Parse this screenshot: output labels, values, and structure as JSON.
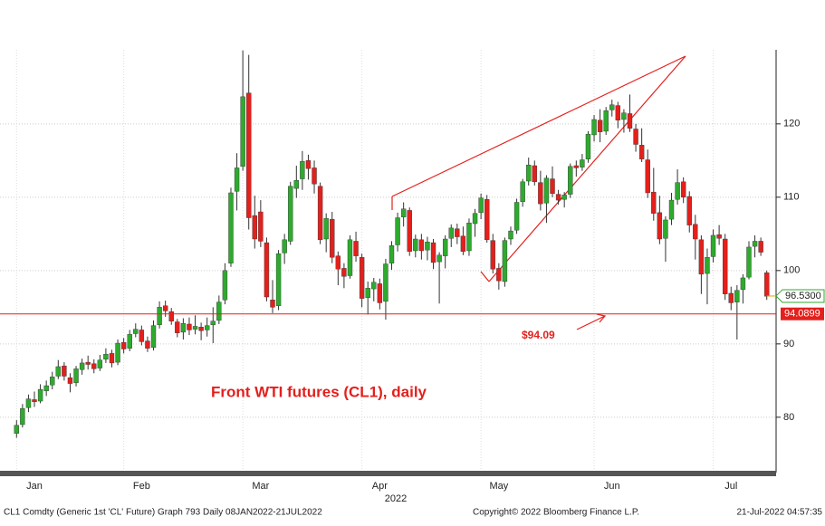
{
  "chart_data": {
    "type": "candlestick",
    "title": "Front WTI futures (CL1), daily",
    "annotation": "$94.09",
    "year_label": "2022",
    "footer_left": "CL1 Comdty (Generic 1st 'CL' Future) Graph 793  Daily 08JAN2022-21JUL2022",
    "footer_center": "Copyright© 2022 Bloomberg Finance L.P.",
    "footer_right": "21-Jul-2022 04:57:35",
    "up_color": "#2eaa2e",
    "down_color": "#e3201c",
    "line_color": "#e3201c",
    "last_color": "#2eaa2e",
    "ylim": [
      72.7,
      130.1
    ],
    "yticks": [
      80,
      90,
      100,
      110,
      120
    ],
    "grid": true,
    "hline": {
      "value": 94.0899,
      "label": "94.0899"
    },
    "last_price": {
      "value": 96.53,
      "label": "96.5300"
    },
    "categories": [
      null,
      null,
      null,
      "Jan",
      null,
      null,
      null,
      null,
      null,
      null,
      null,
      null,
      null,
      null,
      null,
      null,
      null,
      null,
      null,
      null,
      null,
      "Feb",
      null,
      null,
      null,
      null,
      null,
      null,
      null,
      null,
      null,
      null,
      null,
      null,
      null,
      null,
      null,
      null,
      null,
      null,
      null,
      "Mar",
      null,
      null,
      null,
      null,
      null,
      null,
      null,
      null,
      null,
      null,
      null,
      null,
      null,
      null,
      null,
      null,
      null,
      null,
      null,
      "Apr",
      null,
      null,
      null,
      null,
      null,
      null,
      null,
      null,
      null,
      null,
      null,
      null,
      null,
      null,
      null,
      null,
      null,
      null,
      null,
      "May",
      null,
      null,
      null,
      null,
      null,
      null,
      null,
      null,
      null,
      null,
      null,
      null,
      null,
      null,
      null,
      null,
      null,
      null,
      "Jun",
      null,
      null,
      null,
      null,
      null,
      null,
      null,
      null,
      null,
      null,
      null,
      null,
      null,
      null,
      null,
      null,
      null,
      null,
      null,
      "Jul",
      null,
      null,
      null,
      null,
      null,
      null
    ],
    "ohlc": [
      [
        77.8,
        79.6,
        77.2,
        78.9
      ],
      [
        79.0,
        81.8,
        78.6,
        81.2
      ],
      [
        81.3,
        83.1,
        80.7,
        82.5
      ],
      [
        82.4,
        83.5,
        81.4,
        82.1
      ],
      [
        82.2,
        84.5,
        81.9,
        83.8
      ],
      [
        83.6,
        85.0,
        82.9,
        84.3
      ],
      [
        84.4,
        86.2,
        83.8,
        85.5
      ],
      [
        85.6,
        87.8,
        85.2,
        86.9
      ],
      [
        87.0,
        87.5,
        85.0,
        85.6
      ],
      [
        85.4,
        86.0,
        83.4,
        84.6
      ],
      [
        84.7,
        87.0,
        84.2,
        86.6
      ],
      [
        86.5,
        88.0,
        85.8,
        87.4
      ],
      [
        87.5,
        88.4,
        86.5,
        87.2
      ],
      [
        87.3,
        87.9,
        86.0,
        86.6
      ],
      [
        86.7,
        88.5,
        86.3,
        87.8
      ],
      [
        87.9,
        89.4,
        87.4,
        88.6
      ],
      [
        88.7,
        89.2,
        86.8,
        87.4
      ],
      [
        87.5,
        90.6,
        87.1,
        90.1
      ],
      [
        90.2,
        90.8,
        88.7,
        89.3
      ],
      [
        89.4,
        91.9,
        89.0,
        91.3
      ],
      [
        91.4,
        92.8,
        90.9,
        92.0
      ],
      [
        91.9,
        92.5,
        89.8,
        90.3
      ],
      [
        90.4,
        91.0,
        88.9,
        89.4
      ],
      [
        89.5,
        93.2,
        89.1,
        92.5
      ],
      [
        92.6,
        95.8,
        92.1,
        95.0
      ],
      [
        95.2,
        95.9,
        93.7,
        94.5
      ],
      [
        94.4,
        94.9,
        92.6,
        93.1
      ],
      [
        93.0,
        93.4,
        90.9,
        91.5
      ],
      [
        91.6,
        93.5,
        90.6,
        92.8
      ],
      [
        92.7,
        93.6,
        91.2,
        91.9
      ],
      [
        92.0,
        93.9,
        91.3,
        92.4
      ],
      [
        92.3,
        92.9,
        90.5,
        91.8
      ],
      [
        91.9,
        93.6,
        91.0,
        92.5
      ],
      [
        92.6,
        95.0,
        90.1,
        93.1
      ],
      [
        93.2,
        96.6,
        92.7,
        95.7
      ],
      [
        96.0,
        101.0,
        95.4,
        100.0
      ],
      [
        101.0,
        111.3,
        100.5,
        110.6
      ],
      [
        110.8,
        116.0,
        108.2,
        114.0
      ],
      [
        114.2,
        130.0,
        113.6,
        123.7
      ],
      [
        124.2,
        129.4,
        105.6,
        107.2
      ],
      [
        107.5,
        110.2,
        103.0,
        104.3
      ],
      [
        108.0,
        109.6,
        103.2,
        104.0
      ],
      [
        103.8,
        104.5,
        95.8,
        96.4
      ],
      [
        96.0,
        98.7,
        94.2,
        95.0
      ],
      [
        95.2,
        102.8,
        94.6,
        102.3
      ],
      [
        102.4,
        105.0,
        100.9,
        104.2
      ],
      [
        104.0,
        112.1,
        103.5,
        111.5
      ],
      [
        111.2,
        114.3,
        109.9,
        112.3
      ],
      [
        112.5,
        116.3,
        111.0,
        114.9
      ],
      [
        115.0,
        115.8,
        112.4,
        113.9
      ],
      [
        114.0,
        115.0,
        110.5,
        111.8
      ],
      [
        111.5,
        112.0,
        103.6,
        104.2
      ],
      [
        104.3,
        107.8,
        102.5,
        107.1
      ],
      [
        107.0,
        108.0,
        101.0,
        101.8
      ],
      [
        102.0,
        102.6,
        98.0,
        100.2
      ],
      [
        100.3,
        101.0,
        97.6,
        99.2
      ],
      [
        99.3,
        104.8,
        98.9,
        104.2
      ],
      [
        104.0,
        105.3,
        101.2,
        102.0
      ],
      [
        101.8,
        102.3,
        95.0,
        96.2
      ],
      [
        96.3,
        98.5,
        94.0,
        97.6
      ],
      [
        97.5,
        99.0,
        95.8,
        98.4
      ],
      [
        98.2,
        98.9,
        94.7,
        95.6
      ],
      [
        95.8,
        101.6,
        93.3,
        100.9
      ],
      [
        101.0,
        104.0,
        100.1,
        103.4
      ],
      [
        103.5,
        107.9,
        102.6,
        107.2
      ],
      [
        107.3,
        109.3,
        106.0,
        108.4
      ],
      [
        108.2,
        108.6,
        102.0,
        102.6
      ],
      [
        102.7,
        104.9,
        101.8,
        104.3
      ],
      [
        104.2,
        105.0,
        101.5,
        102.7
      ],
      [
        102.8,
        104.6,
        101.4,
        103.9
      ],
      [
        103.8,
        104.3,
        100.2,
        101.1
      ],
      [
        101.2,
        102.5,
        95.5,
        102.1
      ],
      [
        102.0,
        104.8,
        100.3,
        104.3
      ],
      [
        104.4,
        106.3,
        103.2,
        105.8
      ],
      [
        105.7,
        106.4,
        103.6,
        104.6
      ],
      [
        104.7,
        106.0,
        102.1,
        102.6
      ],
      [
        102.7,
        107.1,
        102.0,
        106.5
      ],
      [
        106.4,
        108.4,
        104.6,
        107.8
      ],
      [
        107.9,
        110.5,
        107.0,
        109.9
      ],
      [
        109.7,
        110.3,
        103.8,
        104.2
      ],
      [
        104.1,
        105.0,
        99.6,
        100.2
      ],
      [
        100.3,
        101.0,
        97.4,
        98.6
      ],
      [
        98.5,
        104.5,
        97.8,
        104.1
      ],
      [
        104.3,
        106.0,
        103.5,
        105.4
      ],
      [
        105.5,
        109.8,
        105.0,
        109.3
      ],
      [
        109.4,
        112.5,
        108.7,
        112.1
      ],
      [
        112.2,
        115.4,
        111.6,
        114.4
      ],
      [
        114.3,
        115.0,
        111.6,
        112.1
      ],
      [
        112.0,
        113.6,
        108.2,
        109.1
      ],
      [
        109.2,
        113.0,
        106.5,
        112.6
      ],
      [
        112.5,
        114.2,
        110.0,
        110.5
      ],
      [
        110.4,
        111.0,
        109.0,
        109.6
      ],
      [
        109.7,
        110.7,
        108.6,
        110.3
      ],
      [
        110.4,
        114.6,
        109.9,
        114.2
      ],
      [
        114.3,
        115.0,
        112.8,
        114.0
      ],
      [
        114.1,
        115.9,
        113.6,
        115.1
      ],
      [
        115.2,
        119.0,
        114.7,
        118.6
      ],
      [
        118.5,
        121.2,
        117.6,
        120.6
      ],
      [
        120.5,
        122.0,
        117.5,
        118.9
      ],
      [
        119.0,
        122.3,
        118.5,
        121.8
      ],
      [
        121.9,
        123.3,
        121.0,
        122.6
      ],
      [
        122.5,
        123.0,
        119.4,
        120.5
      ],
      [
        120.6,
        122.0,
        118.8,
        121.5
      ],
      [
        121.4,
        124.0,
        118.9,
        119.4
      ],
      [
        119.3,
        120.0,
        116.2,
        117.2
      ],
      [
        117.1,
        119.4,
        114.8,
        115.2
      ],
      [
        115.1,
        116.5,
        109.9,
        110.6
      ],
      [
        110.7,
        114.0,
        106.8,
        107.8
      ],
      [
        107.9,
        110.2,
        103.6,
        104.3
      ],
      [
        104.4,
        107.4,
        101.2,
        106.9
      ],
      [
        107.0,
        110.6,
        106.2,
        109.6
      ],
      [
        109.7,
        113.8,
        109.0,
        112.0
      ],
      [
        112.1,
        112.7,
        109.2,
        110.0
      ],
      [
        110.1,
        110.8,
        105.2,
        106.2
      ],
      [
        106.3,
        107.6,
        101.5,
        104.3
      ],
      [
        104.2,
        104.8,
        96.8,
        99.5
      ],
      [
        99.6,
        103.0,
        95.4,
        101.8
      ],
      [
        101.9,
        105.6,
        101.1,
        104.8
      ],
      [
        104.9,
        106.2,
        103.5,
        104.4
      ],
      [
        104.3,
        105.0,
        96.0,
        96.8
      ],
      [
        96.9,
        97.8,
        94.6,
        95.6
      ],
      [
        95.7,
        98.0,
        90.6,
        97.3
      ],
      [
        97.4,
        99.5,
        95.5,
        99.0
      ],
      [
        99.1,
        104.0,
        98.8,
        103.2
      ],
      [
        103.3,
        104.8,
        101.8,
        104.0
      ],
      [
        104.0,
        104.5,
        102.0,
        102.5
      ],
      [
        99.7,
        100.0,
        96.0,
        96.5
      ]
    ]
  }
}
